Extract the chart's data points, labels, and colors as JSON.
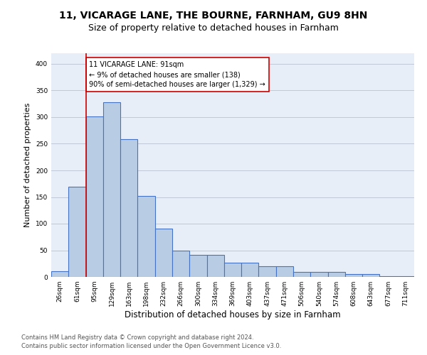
{
  "title_line1": "11, VICARAGE LANE, THE BOURNE, FARNHAM, GU9 8HN",
  "title_line2": "Size of property relative to detached houses in Farnham",
  "xlabel": "Distribution of detached houses by size in Farnham",
  "ylabel": "Number of detached properties",
  "bar_labels": [
    "26sqm",
    "61sqm",
    "95sqm",
    "129sqm",
    "163sqm",
    "198sqm",
    "232sqm",
    "266sqm",
    "300sqm",
    "334sqm",
    "369sqm",
    "403sqm",
    "437sqm",
    "471sqm",
    "506sqm",
    "540sqm",
    "574sqm",
    "608sqm",
    "643sqm",
    "677sqm",
    "711sqm"
  ],
  "bar_heights": [
    11,
    170,
    301,
    328,
    258,
    152,
    91,
    50,
    42,
    42,
    27,
    27,
    20,
    20,
    10,
    9,
    9,
    5,
    5,
    2,
    2
  ],
  "bar_color": "#b8cce4",
  "bar_edge_color": "#4472c4",
  "bar_linewidth": 0.8,
  "vline_color": "#cc0000",
  "annotation_box_text": "11 VICARAGE LANE: 91sqm\n← 9% of detached houses are smaller (138)\n90% of semi-detached houses are larger (1,329) →",
  "annotation_box_color": "#cc0000",
  "ylim": [
    0,
    420
  ],
  "yticks": [
    0,
    50,
    100,
    150,
    200,
    250,
    300,
    350,
    400
  ],
  "grid_color": "#c0c8d8",
  "background_color": "#e8eef8",
  "footer_line1": "Contains HM Land Registry data © Crown copyright and database right 2024.",
  "footer_line2": "Contains public sector information licensed under the Open Government Licence v3.0.",
  "title_fontsize": 10,
  "subtitle_fontsize": 9,
  "xlabel_fontsize": 8.5,
  "ylabel_fontsize": 8,
  "tick_fontsize": 6.5,
  "footer_fontsize": 6,
  "ann_fontsize": 7
}
